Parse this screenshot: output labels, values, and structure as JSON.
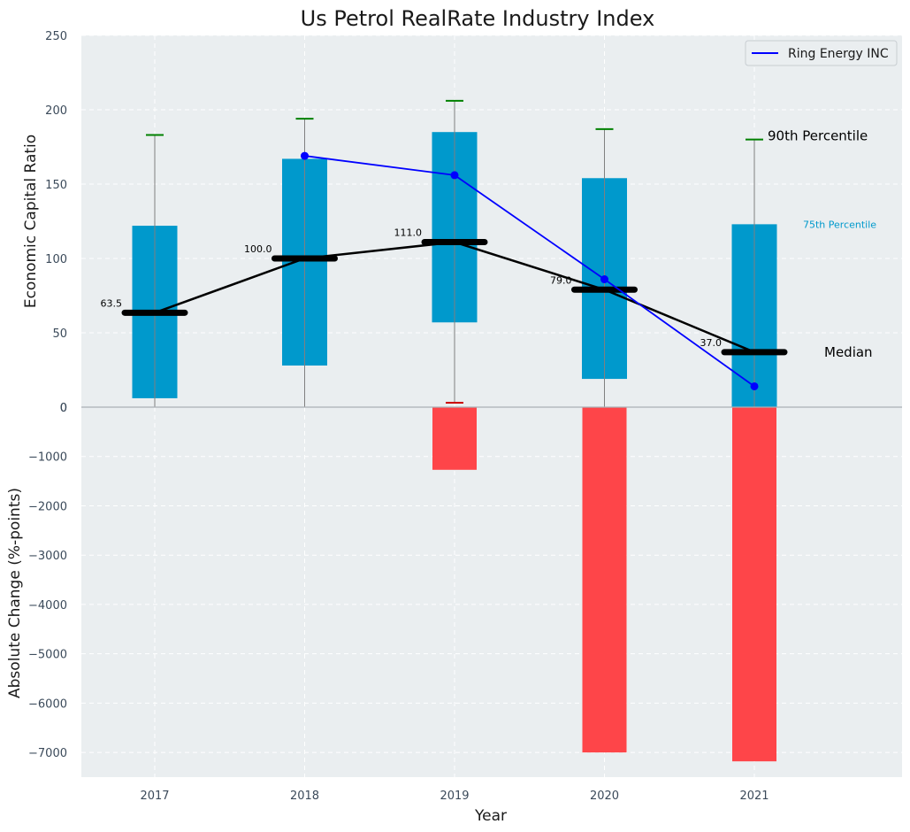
{
  "chart_data": {
    "type": "box",
    "title": "Us Petrol RealRate Industry Index",
    "xlabel": "Year",
    "categories": [
      "2017",
      "2018",
      "2019",
      "2020",
      "2021"
    ],
    "grid": true,
    "legend_position": "top-right",
    "colors": {
      "background": "#eaeef0",
      "box": "#0099cc",
      "median": "#000000",
      "whisker": "#808080",
      "cap_upper": "#008000",
      "cap_lower": "#cc0000",
      "company_line": "#0000ff",
      "change_bar": "#ff3b3f"
    },
    "top_panel": {
      "ylabel": "Economic Capital Ratio",
      "ylim": [
        0,
        250
      ],
      "yticks": [
        0,
        50,
        100,
        150,
        200,
        250
      ],
      "boxes": [
        {
          "year": "2017",
          "p10": 0,
          "p25": 6,
          "median": 63.5,
          "p75": 122,
          "p90": 183
        },
        {
          "year": "2018",
          "p10": 0,
          "p25": 28,
          "median": 100.0,
          "p75": 167,
          "p90": 194
        },
        {
          "year": "2019",
          "p10": 3,
          "p25": 57,
          "median": 111.0,
          "p75": 185,
          "p90": 206
        },
        {
          "year": "2020",
          "p10": -25,
          "p25": 19,
          "median": 79.0,
          "p75": 154,
          "p90": 187
        },
        {
          "year": "2021",
          "p10": 0,
          "p25": 0,
          "median": 37.0,
          "p75": 123,
          "p90": 180
        }
      ],
      "median_labels": [
        "63.5",
        "100.0",
        "111.0",
        "79.0",
        "37.0"
      ],
      "series": [
        {
          "name": "Ring Energy INC",
          "x": [
            "2018",
            "2019",
            "2020",
            "2021"
          ],
          "values": [
            169,
            156,
            86,
            14
          ]
        }
      ],
      "annotations": {
        "p90": "90th Percentile",
        "p75": "75th Percentile",
        "median": "Median"
      }
    },
    "bottom_panel": {
      "ylabel": "Absolute Change (%-points)",
      "ylim": [
        -7500,
        0
      ],
      "yticks": [
        0,
        -1000,
        -2000,
        -3000,
        -4000,
        -5000,
        -6000,
        -7000
      ],
      "ytick_labels": [
        "0",
        "−1000",
        "−2000",
        "−3000",
        "−4000",
        "−5000",
        "−6000",
        "−7000"
      ],
      "values": [
        0,
        0,
        -1270,
        -7000,
        -7180
      ]
    }
  }
}
